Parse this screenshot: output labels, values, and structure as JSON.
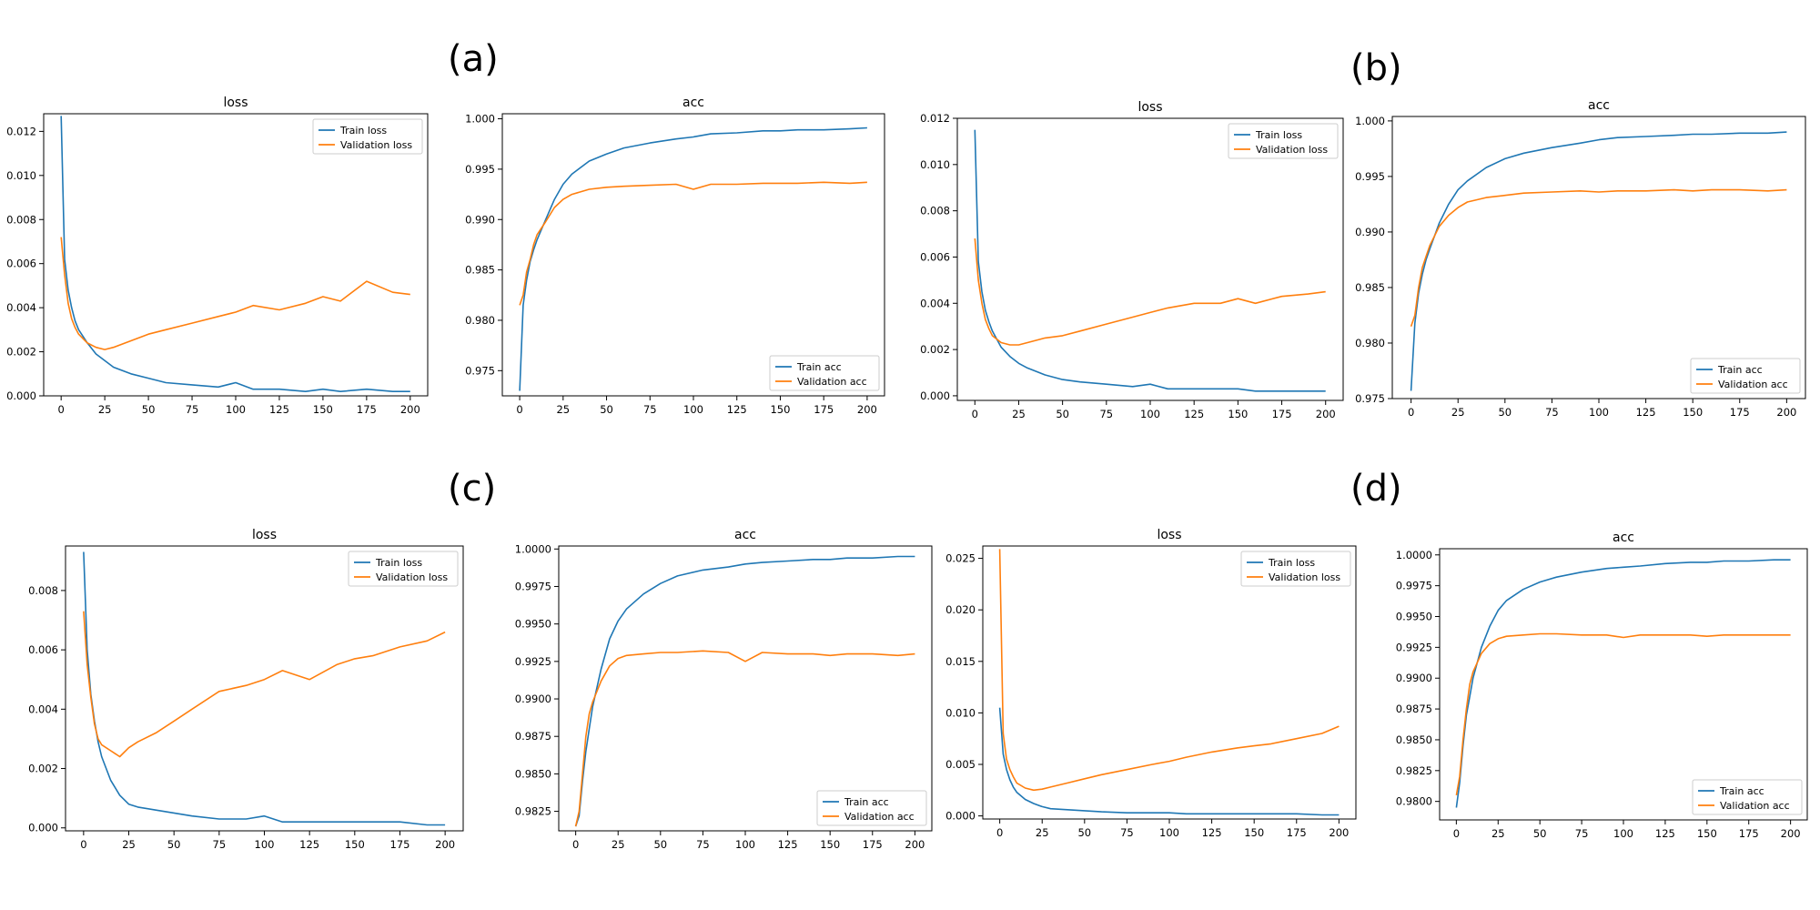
{
  "panel_labels": [
    "(a)",
    "(b)",
    "(c)",
    "(d)"
  ],
  "colors": {
    "train": "#1f77b4",
    "validation": "#ff7f0e"
  },
  "chart_data": [
    {
      "panel": "(a)",
      "type": "line",
      "title": "loss",
      "xlabel": "",
      "ylabel": "",
      "xlim": [
        0,
        200
      ],
      "ylim": [
        0,
        0.0128
      ],
      "xticks": [
        0,
        25,
        50,
        75,
        100,
        125,
        150,
        175,
        200
      ],
      "yticks": [
        0.0,
        0.002,
        0.004,
        0.006,
        0.008,
        0.01,
        0.012
      ],
      "ytick_labels": [
        "0.000",
        "0.002",
        "0.004",
        "0.006",
        "0.008",
        "0.010",
        "0.012"
      ],
      "legend_loc": "top-right",
      "x": [
        0,
        2,
        4,
        6,
        8,
        10,
        15,
        20,
        25,
        30,
        40,
        50,
        60,
        75,
        90,
        100,
        110,
        125,
        140,
        150,
        160,
        175,
        190,
        200
      ],
      "series": [
        {
          "name": "Train loss",
          "values": [
            0.0127,
            0.0062,
            0.0048,
            0.004,
            0.0034,
            0.003,
            0.0024,
            0.0019,
            0.0016,
            0.0013,
            0.001,
            0.0008,
            0.0006,
            0.0005,
            0.0004,
            0.0006,
            0.0003,
            0.0003,
            0.0002,
            0.0003,
            0.0002,
            0.0003,
            0.0002,
            0.0002
          ]
        },
        {
          "name": "Validation loss",
          "values": [
            0.0072,
            0.0055,
            0.0042,
            0.0035,
            0.0031,
            0.0028,
            0.0024,
            0.0022,
            0.0021,
            0.0022,
            0.0025,
            0.0028,
            0.003,
            0.0033,
            0.0036,
            0.0038,
            0.0041,
            0.0039,
            0.0042,
            0.0045,
            0.0043,
            0.0052,
            0.0047,
            0.0046
          ]
        }
      ]
    },
    {
      "panel": "(a)",
      "type": "line",
      "title": "acc",
      "xlabel": "",
      "ylabel": "",
      "xlim": [
        0,
        200
      ],
      "ylim": [
        0.9725,
        1.0005
      ],
      "xticks": [
        0,
        25,
        50,
        75,
        100,
        125,
        150,
        175,
        200
      ],
      "yticks": [
        0.975,
        0.98,
        0.985,
        0.99,
        0.995,
        1.0
      ],
      "ytick_labels": [
        "0.975",
        "0.980",
        "0.985",
        "0.990",
        "0.995",
        "1.000"
      ],
      "legend_loc": "bottom-right",
      "x": [
        0,
        2,
        4,
        6,
        8,
        10,
        15,
        20,
        25,
        30,
        40,
        50,
        60,
        75,
        90,
        100,
        110,
        125,
        140,
        150,
        160,
        175,
        190,
        200
      ],
      "series": [
        {
          "name": "Train acc",
          "values": [
            0.973,
            0.9815,
            0.984,
            0.9858,
            0.987,
            0.988,
            0.99,
            0.992,
            0.9935,
            0.9945,
            0.9958,
            0.9965,
            0.9971,
            0.9976,
            0.998,
            0.9982,
            0.9985,
            0.9986,
            0.9988,
            0.9988,
            0.9989,
            0.9989,
            0.999,
            0.9991
          ]
        },
        {
          "name": "Validation acc",
          "values": [
            0.9815,
            0.9825,
            0.9848,
            0.986,
            0.9875,
            0.9885,
            0.9898,
            0.9912,
            0.992,
            0.9925,
            0.993,
            0.9932,
            0.9933,
            0.9934,
            0.9935,
            0.993,
            0.9935,
            0.9935,
            0.9936,
            0.9936,
            0.9936,
            0.9937,
            0.9936,
            0.9937
          ]
        }
      ]
    },
    {
      "panel": "(b)",
      "type": "line",
      "title": "loss",
      "xlabel": "",
      "ylabel": "",
      "xlim": [
        0,
        200
      ],
      "ylim": [
        -0.0002,
        0.012
      ],
      "xticks": [
        0,
        25,
        50,
        75,
        100,
        125,
        150,
        175,
        200
      ],
      "yticks": [
        0.0,
        0.002,
        0.004,
        0.006,
        0.008,
        0.01,
        0.012
      ],
      "ytick_labels": [
        "0.000",
        "0.002",
        "0.004",
        "0.006",
        "0.008",
        "0.010",
        "0.012"
      ],
      "legend_loc": "top-right",
      "x": [
        0,
        2,
        4,
        6,
        8,
        10,
        15,
        20,
        25,
        30,
        40,
        50,
        60,
        75,
        90,
        100,
        110,
        125,
        140,
        150,
        160,
        175,
        190,
        200
      ],
      "series": [
        {
          "name": "Train loss",
          "values": [
            0.0115,
            0.0058,
            0.0045,
            0.0037,
            0.0032,
            0.0028,
            0.0021,
            0.0017,
            0.0014,
            0.0012,
            0.0009,
            0.0007,
            0.0006,
            0.0005,
            0.0004,
            0.0005,
            0.0003,
            0.0003,
            0.0003,
            0.0003,
            0.0002,
            0.0002,
            0.0002,
            0.0002
          ]
        },
        {
          "name": "Validation loss",
          "values": [
            0.0068,
            0.005,
            0.004,
            0.0033,
            0.0029,
            0.0026,
            0.0023,
            0.0022,
            0.0022,
            0.0023,
            0.0025,
            0.0026,
            0.0028,
            0.0031,
            0.0034,
            0.0036,
            0.0038,
            0.004,
            0.004,
            0.0042,
            0.004,
            0.0043,
            0.0044,
            0.0045
          ]
        }
      ]
    },
    {
      "panel": "(b)",
      "type": "line",
      "title": "acc",
      "xlabel": "",
      "ylabel": "",
      "xlim": [
        0,
        200
      ],
      "ylim": [
        0.975,
        1.0004
      ],
      "xticks": [
        0,
        25,
        50,
        75,
        100,
        125,
        150,
        175,
        200
      ],
      "yticks": [
        0.975,
        0.98,
        0.985,
        0.99,
        0.995,
        1.0
      ],
      "ytick_labels": [
        "0.975",
        "0.980",
        "0.985",
        "0.990",
        "0.995",
        "1.000"
      ],
      "legend_loc": "bottom-right",
      "x": [
        0,
        2,
        4,
        6,
        8,
        10,
        15,
        20,
        25,
        30,
        40,
        50,
        60,
        75,
        90,
        100,
        110,
        125,
        140,
        150,
        160,
        175,
        190,
        200
      ],
      "series": [
        {
          "name": "Train acc",
          "values": [
            0.9757,
            0.9818,
            0.9845,
            0.9862,
            0.9875,
            0.9885,
            0.9908,
            0.9925,
            0.9938,
            0.9946,
            0.9958,
            0.9966,
            0.9971,
            0.9976,
            0.998,
            0.9983,
            0.9985,
            0.9986,
            0.9987,
            0.9988,
            0.9988,
            0.9989,
            0.9989,
            0.999
          ]
        },
        {
          "name": "Validation acc",
          "values": [
            0.9815,
            0.9825,
            0.985,
            0.9868,
            0.9878,
            0.9888,
            0.9905,
            0.9915,
            0.9922,
            0.9927,
            0.9931,
            0.9933,
            0.9935,
            0.9936,
            0.9937,
            0.9936,
            0.9937,
            0.9937,
            0.9938,
            0.9937,
            0.9938,
            0.9938,
            0.9937,
            0.9938
          ]
        }
      ]
    },
    {
      "panel": "(c)",
      "type": "line",
      "title": "loss",
      "xlabel": "",
      "ylabel": "",
      "xlim": [
        0,
        200
      ],
      "ylim": [
        -0.0001,
        0.0095
      ],
      "xticks": [
        0,
        25,
        50,
        75,
        100,
        125,
        150,
        175,
        200
      ],
      "yticks": [
        0.0,
        0.002,
        0.004,
        0.006,
        0.008
      ],
      "ytick_labels": [
        "0.000",
        "0.002",
        "0.004",
        "0.006",
        "0.008"
      ],
      "legend_loc": "top-right",
      "x": [
        0,
        2,
        4,
        6,
        8,
        10,
        15,
        20,
        25,
        30,
        40,
        50,
        60,
        75,
        90,
        100,
        110,
        125,
        140,
        150,
        160,
        175,
        190,
        200
      ],
      "series": [
        {
          "name": "Train loss",
          "values": [
            0.0093,
            0.006,
            0.0045,
            0.0036,
            0.0029,
            0.0024,
            0.0016,
            0.0011,
            0.0008,
            0.0007,
            0.0006,
            0.0005,
            0.0004,
            0.0003,
            0.0003,
            0.0004,
            0.0002,
            0.0002,
            0.0002,
            0.0002,
            0.0002,
            0.0002,
            0.0001,
            0.0001
          ]
        },
        {
          "name": "Validation loss",
          "values": [
            0.0073,
            0.0055,
            0.0044,
            0.0035,
            0.003,
            0.0028,
            0.0026,
            0.0024,
            0.0027,
            0.0029,
            0.0032,
            0.0036,
            0.004,
            0.0046,
            0.0048,
            0.005,
            0.0053,
            0.005,
            0.0055,
            0.0057,
            0.0058,
            0.0061,
            0.0063,
            0.0066
          ]
        }
      ]
    },
    {
      "panel": "(c)",
      "type": "line",
      "title": "acc",
      "xlabel": "",
      "ylabel": "",
      "xlim": [
        0,
        200
      ],
      "ylim": [
        0.9812,
        1.0002
      ],
      "xticks": [
        0,
        25,
        50,
        75,
        100,
        125,
        150,
        175,
        200
      ],
      "yticks": [
        0.9825,
        0.985,
        0.9875,
        0.99,
        0.9925,
        0.995,
        0.9975,
        1.0
      ],
      "ytick_labels": [
        "0.9825",
        "0.9850",
        "0.9875",
        "0.9900",
        "0.9925",
        "0.9950",
        "0.9975",
        "1.0000"
      ],
      "legend_loc": "bottom-right",
      "x": [
        0,
        2,
        4,
        6,
        8,
        10,
        15,
        20,
        25,
        30,
        40,
        50,
        60,
        75,
        90,
        100,
        110,
        125,
        140,
        150,
        160,
        175,
        190,
        200
      ],
      "series": [
        {
          "name": "Train acc",
          "values": [
            0.9815,
            0.9822,
            0.9845,
            0.9865,
            0.988,
            0.9895,
            0.992,
            0.994,
            0.9952,
            0.996,
            0.997,
            0.9977,
            0.9982,
            0.9986,
            0.9988,
            0.999,
            0.9991,
            0.9992,
            0.9993,
            0.9993,
            0.9994,
            0.9994,
            0.9995,
            0.9995
          ]
        },
        {
          "name": "Validation acc",
          "values": [
            0.9815,
            0.9825,
            0.985,
            0.9875,
            0.989,
            0.9898,
            0.9912,
            0.9922,
            0.9927,
            0.9929,
            0.993,
            0.9931,
            0.9931,
            0.9932,
            0.9931,
            0.9925,
            0.9931,
            0.993,
            0.993,
            0.9929,
            0.993,
            0.993,
            0.9929,
            0.993
          ]
        }
      ]
    },
    {
      "panel": "(d)",
      "type": "line",
      "title": "loss",
      "xlabel": "",
      "ylabel": "",
      "xlim": [
        0,
        200
      ],
      "ylim": [
        -0.0003,
        0.0262
      ],
      "xticks": [
        0,
        25,
        50,
        75,
        100,
        125,
        150,
        175,
        200
      ],
      "yticks": [
        0.0,
        0.005,
        0.01,
        0.015,
        0.02,
        0.025
      ],
      "ytick_labels": [
        "0.000",
        "0.005",
        "0.010",
        "0.015",
        "0.020",
        "0.025"
      ],
      "legend_loc": "top-right",
      "x": [
        0,
        2,
        4,
        6,
        8,
        10,
        15,
        20,
        25,
        30,
        40,
        50,
        60,
        75,
        90,
        100,
        110,
        125,
        140,
        150,
        160,
        175,
        190,
        200
      ],
      "series": [
        {
          "name": "Train loss",
          "values": [
            0.0105,
            0.006,
            0.0045,
            0.0035,
            0.0028,
            0.0023,
            0.0016,
            0.0012,
            0.0009,
            0.0007,
            0.0006,
            0.0005,
            0.0004,
            0.0003,
            0.0003,
            0.0003,
            0.0002,
            0.0002,
            0.0002,
            0.0002,
            0.0002,
            0.0002,
            0.0001,
            0.0001
          ]
        },
        {
          "name": "Validation loss",
          "values": [
            0.0259,
            0.008,
            0.0055,
            0.0045,
            0.0038,
            0.0032,
            0.0027,
            0.0025,
            0.0026,
            0.0028,
            0.0032,
            0.0036,
            0.004,
            0.0045,
            0.005,
            0.0053,
            0.0057,
            0.0062,
            0.0066,
            0.0068,
            0.007,
            0.0075,
            0.008,
            0.0087
          ]
        }
      ]
    },
    {
      "panel": "(d)",
      "type": "line",
      "title": "acc",
      "xlabel": "",
      "ylabel": "",
      "xlim": [
        0,
        200
      ],
      "ylim": [
        0.9785,
        1.0005
      ],
      "xticks": [
        0,
        25,
        50,
        75,
        100,
        125,
        150,
        175,
        200
      ],
      "yticks": [
        0.98,
        0.9825,
        0.985,
        0.9875,
        0.99,
        0.9925,
        0.995,
        0.9975,
        1.0
      ],
      "ytick_labels": [
        "0.9800",
        "0.9825",
        "0.9850",
        "0.9875",
        "0.9900",
        "0.9925",
        "0.9950",
        "0.9975",
        "1.0000"
      ],
      "legend_loc": "bottom-right",
      "x": [
        0,
        2,
        4,
        6,
        8,
        10,
        15,
        20,
        25,
        30,
        40,
        50,
        60,
        75,
        90,
        100,
        110,
        125,
        140,
        150,
        160,
        175,
        190,
        200
      ],
      "series": [
        {
          "name": "Train acc",
          "values": [
            0.9795,
            0.9815,
            0.9845,
            0.987,
            0.9885,
            0.99,
            0.9925,
            0.9942,
            0.9955,
            0.9963,
            0.9972,
            0.9978,
            0.9982,
            0.9986,
            0.9989,
            0.999,
            0.9991,
            0.9993,
            0.9994,
            0.9994,
            0.9995,
            0.9995,
            0.9996,
            0.9996
          ]
        },
        {
          "name": "Validation acc",
          "values": [
            0.9805,
            0.982,
            0.985,
            0.9875,
            0.9895,
            0.9905,
            0.992,
            0.9928,
            0.9932,
            0.9934,
            0.9935,
            0.9936,
            0.9936,
            0.9935,
            0.9935,
            0.9933,
            0.9935,
            0.9935,
            0.9935,
            0.9934,
            0.9935,
            0.9935,
            0.9935,
            0.9935
          ]
        }
      ]
    }
  ]
}
